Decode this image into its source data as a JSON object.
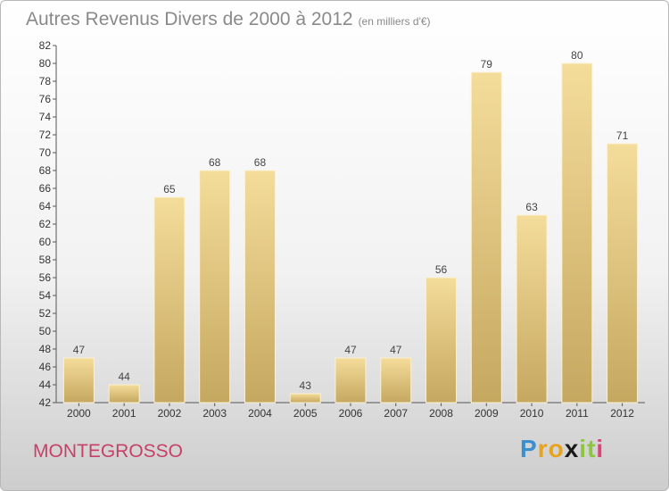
{
  "title": "Autres Revenus Divers de 2000 à 2012",
  "subtitle": "(en milliers d'€)",
  "place": "MONTEGROSSO",
  "logo": {
    "letters": [
      {
        "ch": "P",
        "color": "#3a8fd1"
      },
      {
        "ch": "r",
        "color": "#e8a31c"
      },
      {
        "ch": "o",
        "color": "#e8a31c"
      },
      {
        "ch": "x",
        "color": "#1a1a1a"
      },
      {
        "ch": "i",
        "color": "#8cc63e"
      },
      {
        "ch": "t",
        "color": "#8cc63e"
      },
      {
        "ch": "i",
        "color": "#d9457a"
      }
    ]
  },
  "chart_data": {
    "type": "bar",
    "title": "Autres Revenus Divers de 2000 à 2012",
    "subtitle": "(en milliers d'€)",
    "categories": [
      "2000",
      "2001",
      "2002",
      "2003",
      "2004",
      "2005",
      "2006",
      "2007",
      "2008",
      "2009",
      "2010",
      "2011",
      "2012"
    ],
    "values": [
      47,
      44,
      65,
      68,
      68,
      43,
      47,
      47,
      56,
      79,
      63,
      80,
      71
    ],
    "ylim": [
      42,
      82
    ],
    "ytick_step": 2,
    "grid": false,
    "bar_color": "#e6c87a",
    "data_labels": true
  }
}
